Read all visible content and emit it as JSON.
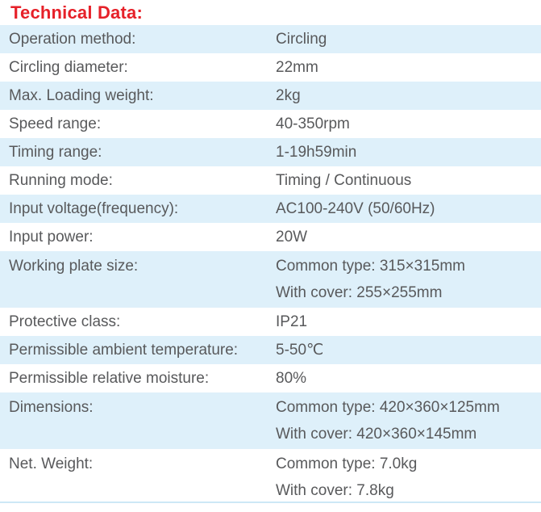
{
  "page_title": "Technical Data:",
  "colors": {
    "title_red": "#e62129",
    "row_stripe": "#def0fa",
    "body_text": "#58595b",
    "bottom_divider": "#cde8f6"
  },
  "spec_table": {
    "rows": [
      {
        "label": "Operation method:",
        "values": [
          "Circling"
        ],
        "striped": true
      },
      {
        "label": "Circling diameter:",
        "values": [
          "22mm"
        ],
        "striped": false
      },
      {
        "label": "Max. Loading weight:",
        "values": [
          "2kg"
        ],
        "striped": true
      },
      {
        "label": "Speed range:",
        "values": [
          "40-350rpm"
        ],
        "striped": false
      },
      {
        "label": "Timing range:",
        "values": [
          "1-19h59min"
        ],
        "striped": true
      },
      {
        "label": "Running mode:",
        "values": [
          "Timing / Continuous"
        ],
        "striped": false
      },
      {
        "label": "Input voltage(frequency):",
        "values": [
          "AC100-240V (50/60Hz)"
        ],
        "striped": true
      },
      {
        "label": "Input power:",
        "values": [
          "20W"
        ],
        "striped": false
      },
      {
        "label": "Working plate size:",
        "values": [
          "Common type: 315×315mm",
          "With cover: 255×255mm"
        ],
        "striped": true
      },
      {
        "label": "Protective class:",
        "values": [
          "IP21"
        ],
        "striped": false
      },
      {
        "label": "Permissible ambient temperature:",
        "values": [
          "5-50℃"
        ],
        "striped": true
      },
      {
        "label": "Permissible relative moisture:",
        "values": [
          "80%"
        ],
        "striped": false
      },
      {
        "label": "Dimensions:",
        "values": [
          "Common type: 420×360×125mm",
          "With cover: 420×360×145mm"
        ],
        "striped": true
      },
      {
        "label": "Net. Weight:",
        "values": [
          "Common type: 7.0kg",
          "With cover: 7.8kg"
        ],
        "striped": false
      }
    ]
  }
}
